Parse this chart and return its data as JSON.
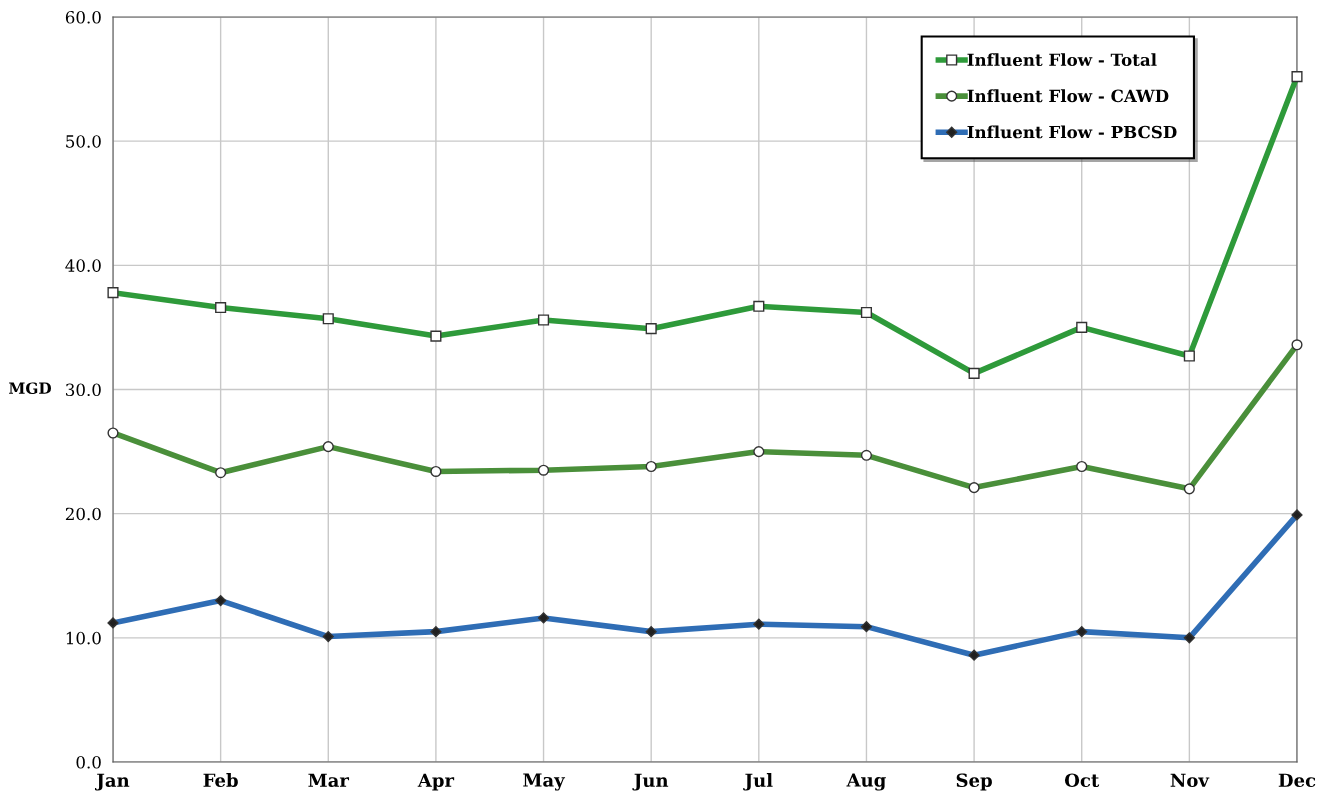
{
  "chart_data": {
    "type": "line",
    "ylabel": "MGD",
    "categories": [
      "Jan",
      "Feb",
      "Mar",
      "Apr",
      "May",
      "Jun",
      "Jul",
      "Aug",
      "Sep",
      "Oct",
      "Nov",
      "Dec"
    ],
    "series": [
      {
        "name": "Influent Flow - Total",
        "color": "#2e9a3a",
        "marker": "square",
        "values": [
          37.8,
          36.6,
          35.7,
          34.3,
          35.6,
          34.9,
          36.7,
          36.2,
          31.3,
          35.0,
          32.7,
          55.2
        ]
      },
      {
        "name": "Influent Flow - CAWD",
        "color": "#4a8f3a",
        "marker": "circle",
        "values": [
          26.5,
          23.3,
          25.4,
          23.4,
          23.5,
          23.8,
          25.0,
          24.7,
          22.1,
          23.8,
          22.0,
          33.6
        ]
      },
      {
        "name": "Influent Flow - PBCSD",
        "color": "#2f6db5",
        "marker": "diamond",
        "values": [
          11.2,
          13.0,
          10.1,
          10.5,
          11.6,
          10.5,
          11.1,
          10.9,
          8.6,
          10.5,
          10.0,
          19.9
        ]
      }
    ],
    "ylim": [
      0,
      60
    ],
    "yticks": [
      {
        "value": 0,
        "label": "0.0"
      },
      {
        "value": 10,
        "label": "10.0"
      },
      {
        "value": 20,
        "label": "20.0"
      },
      {
        "value": 30,
        "label": "30.0"
      },
      {
        "value": 40,
        "label": "40.0"
      },
      {
        "value": 50,
        "label": "50.0"
      },
      {
        "value": 60,
        "label": "60.0"
      }
    ],
    "grid": true,
    "legend": "top right",
    "line_style": "solid"
  }
}
